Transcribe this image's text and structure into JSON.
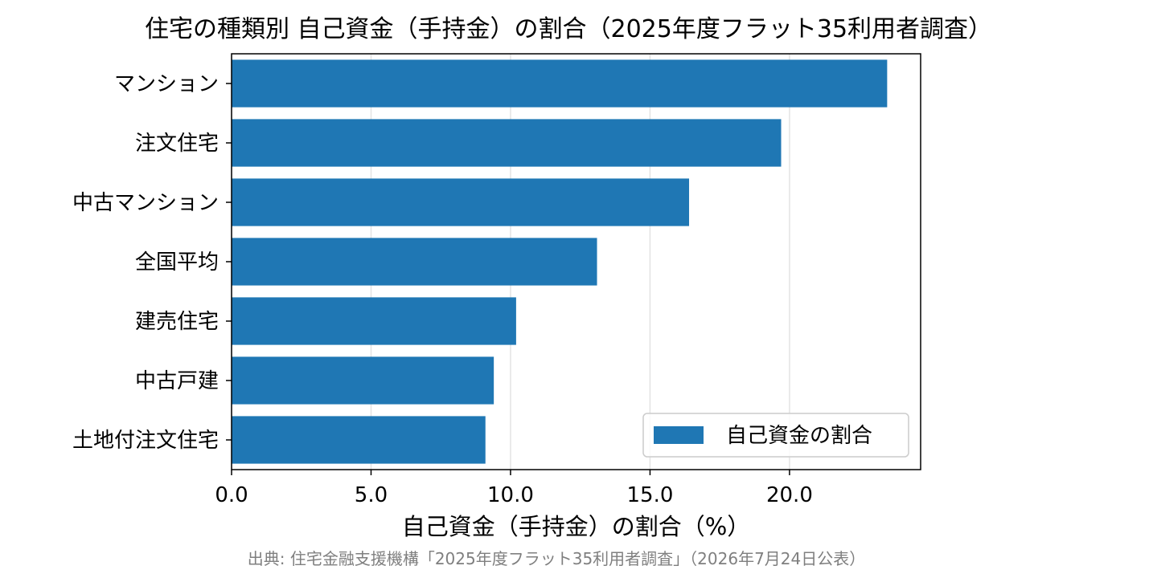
{
  "chart_data": {
    "type": "bar",
    "orientation": "horizontal",
    "title": "住宅の種類別 自己資金（手持金）の割合（2025年度フラット35利用者調査）",
    "categories": [
      "マンション",
      "注文住宅",
      "中古マンション",
      "全国平均",
      "建売住宅",
      "中古戸建",
      "土地付注文住宅"
    ],
    "series": [
      {
        "name": "自己資金の割合",
        "values": [
          23.5,
          19.7,
          16.4,
          13.1,
          10.2,
          9.4,
          9.1
        ]
      }
    ],
    "xlabel": "自己資金（手持金）の割合（%）",
    "ylabel": "",
    "xlim": [
      0,
      24.7
    ],
    "xticks": [
      "0.0",
      "5.0",
      "10.0",
      "15.0",
      "20.0"
    ],
    "grid": "x",
    "legend": "bottom-right",
    "bar_color": "#1f77b4"
  },
  "source_note": "出典: 住宅金融支援機構「2025年度フラット35利用者調査」（2026年7月24日公表）"
}
